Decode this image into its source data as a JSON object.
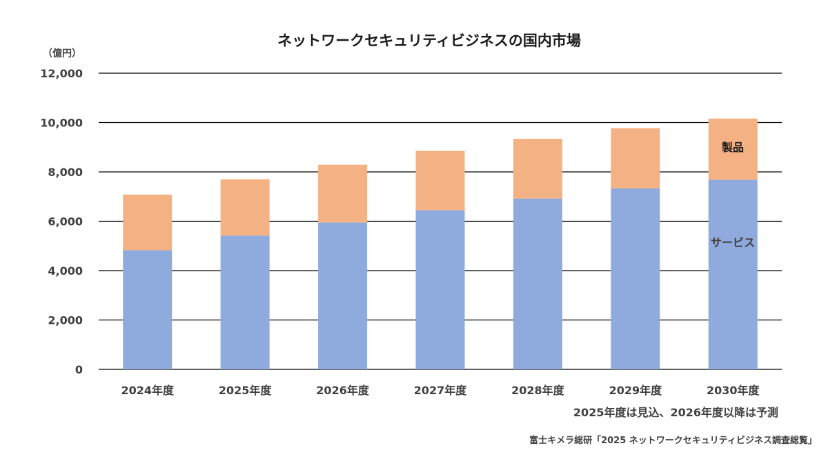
{
  "chart_data": {
    "type": "bar",
    "stacked": true,
    "title": "ネットワークセキュリティビジネスの国内市場",
    "unit_label": "（億円）",
    "categories": [
      "2024年度",
      "2025年度",
      "2026年度",
      "2027年度",
      "2028年度",
      "2029年度",
      "2030年度"
    ],
    "series": [
      {
        "name": "サービス",
        "color": "#8faadc",
        "values": [
          4830,
          5420,
          5950,
          6450,
          6920,
          7330,
          7680
        ]
      },
      {
        "name": "製品",
        "color": "#f4b183",
        "values": [
          2250,
          2280,
          2340,
          2400,
          2420,
          2440,
          2480
        ]
      }
    ],
    "ylim": [
      0,
      12000
    ],
    "yticks": [
      "0",
      "2,000",
      "4,000",
      "6,000",
      "8,000",
      "10,000",
      "12,000"
    ],
    "grid": true,
    "note": "2025年度は見込、2026年度以降は予測",
    "source": "富士キメラ総研「2025 ネットワークセキュリティビジネス調査総覧」"
  }
}
